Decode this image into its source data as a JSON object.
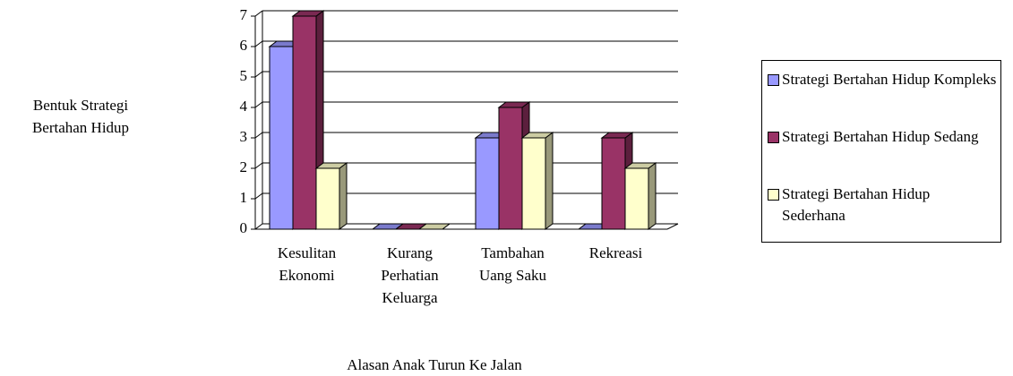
{
  "chart_data": {
    "type": "bar3d",
    "y_label": "Bentuk Strategi Bertahan Hidup",
    "x_label": "Alasan Anak Turun Ke Jalan",
    "categories": [
      "Kesulitan Ekonomi",
      "Kurang Perhatian Keluarga",
      "Tambahan Uang Saku",
      "Rekreasi"
    ],
    "series": [
      {
        "name": "Strategi Bertahan Hidup Kompleks",
        "color": "#9999ff",
        "values": [
          6,
          0,
          3,
          0
        ]
      },
      {
        "name": "Strategi Bertahan Hidup Sedang",
        "color": "#993366",
        "values": [
          7,
          0,
          4,
          3
        ]
      },
      {
        "name": "Strategi Bertahan Hidup Sederhana",
        "color": "#ffffcc",
        "values": [
          2,
          0,
          3,
          2
        ]
      }
    ],
    "ylim": [
      0,
      7
    ],
    "yticks": [
      0,
      1,
      2,
      3,
      4,
      5,
      6,
      7
    ],
    "grid": true,
    "legend": "right"
  }
}
